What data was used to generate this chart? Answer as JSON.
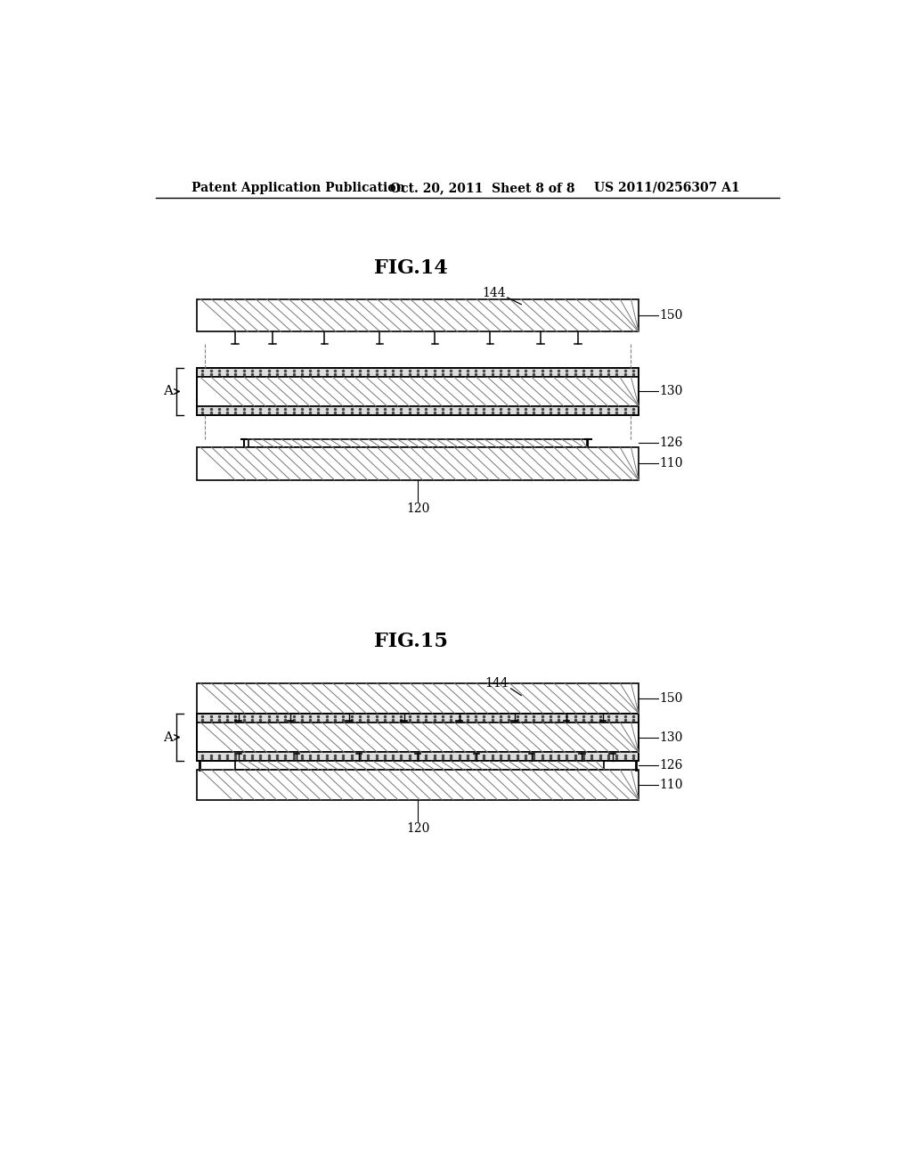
{
  "bg_color": "#ffffff",
  "header_text1": "Patent Application Publication",
  "header_text2": "Oct. 20, 2011  Sheet 8 of 8",
  "header_text3": "US 2011/0256307 A1",
  "fig14_title": "FIG.14",
  "fig15_title": "FIG.15",
  "line_color": "#000000"
}
